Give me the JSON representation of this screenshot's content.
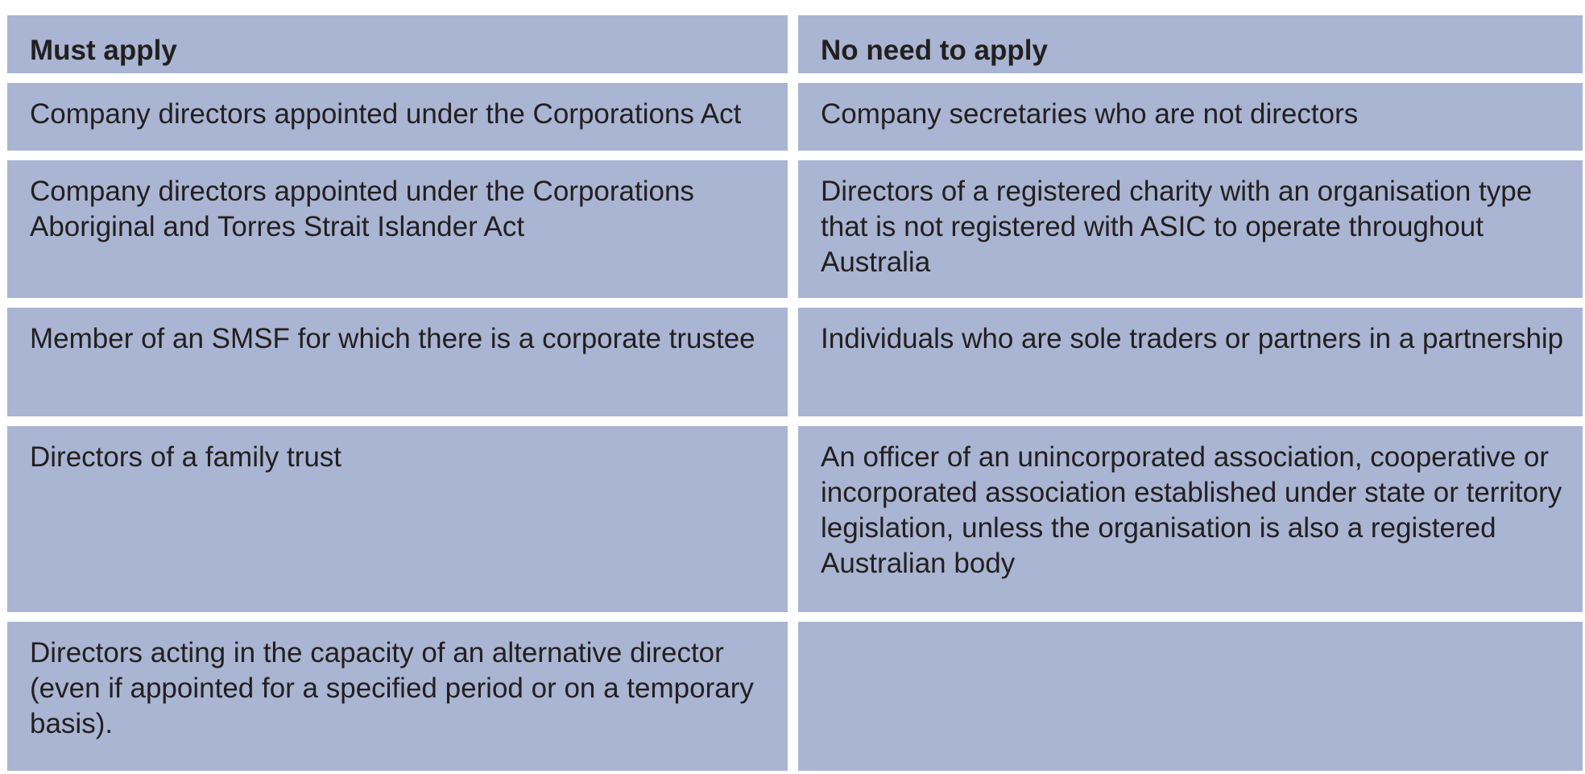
{
  "table": {
    "headers": [
      "Must apply",
      "No need to apply"
    ],
    "rows": [
      [
        "Company directors appointed under the Corporations Act",
        "Company secretaries who are not directors"
      ],
      [
        "Company directors appointed under the Corporations Aboriginal and Torres Strait Islander Act",
        "Directors of a registered charity with an organisation type that is not registered with ASIC to operate throughout Australia"
      ],
      [
        "Member of an SMSF for which there is a corporate trustee",
        "Individuals who are sole traders or partners in a partnership"
      ],
      [
        "Directors of a family trust",
        "An officer of an unincorporated association, cooperative or incorporated association established under state or territory legislation, unless the organisation is also a registered Australian body"
      ],
      [
        "Directors acting in the capacity of an alternative director (even if appointed for a specified period or on a temporary basis).",
        ""
      ]
    ]
  },
  "colors": {
    "cell_background": "#a9b5d2",
    "text": "#231f20"
  }
}
